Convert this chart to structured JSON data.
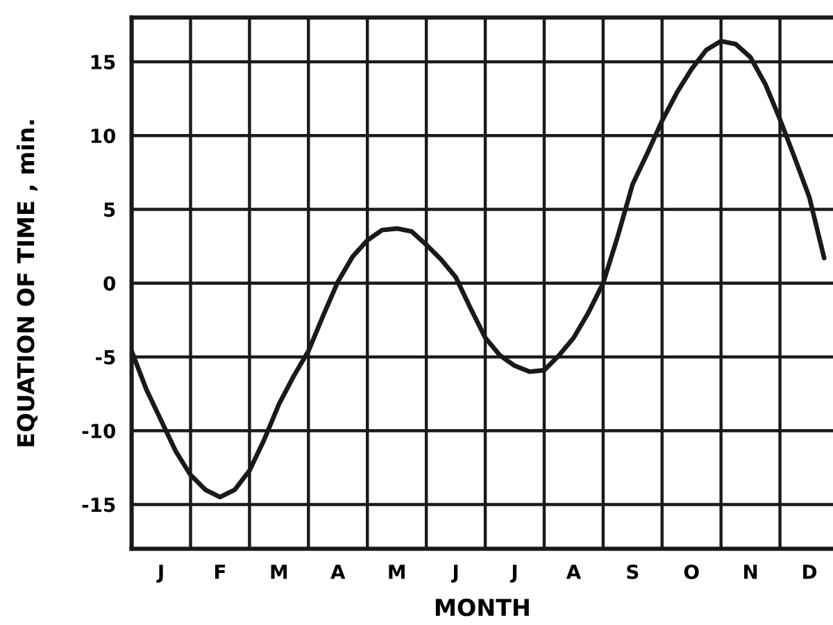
{
  "chart_data": {
    "type": "line",
    "xlabel": "MONTH",
    "ylabel": "EQUATION OF TIME , min.",
    "categories": [
      null,
      null,
      "J",
      null,
      null,
      null,
      "F",
      null,
      null,
      null,
      "M",
      null,
      null,
      null,
      "A",
      null,
      null,
      null,
      "M",
      null,
      null,
      null,
      "J",
      null,
      null,
      null,
      "J",
      null,
      null,
      null,
      "A",
      null,
      null,
      null,
      "S",
      null,
      null,
      null,
      "O",
      null,
      null,
      null,
      "N",
      null,
      null,
      null,
      "D",
      null
    ],
    "series": [
      {
        "color": "#1a1a1a",
        "values": [
          -4.6,
          -7.2,
          -9.3,
          -11.4,
          -13.0,
          -14.0,
          -14.5,
          -14.0,
          -12.7,
          -10.6,
          -8.2,
          -6.3,
          -4.6,
          -2.2,
          0.1,
          1.8,
          2.9,
          3.6,
          3.7,
          3.5,
          2.6,
          1.6,
          0.4,
          -1.7,
          -3.7,
          -4.9,
          -5.6,
          -6.0,
          -5.9,
          -4.9,
          -3.7,
          -2.0,
          0.0,
          3.2,
          6.7,
          8.8,
          11.0,
          12.9,
          14.5,
          15.8,
          16.4,
          16.2,
          15.3,
          13.5,
          11.1,
          8.5,
          5.8,
          1.7
        ]
      }
    ],
    "ylim": [
      -18,
      18
    ],
    "yticks": [
      -15,
      -10,
      -5,
      0,
      5,
      10,
      15
    ],
    "grid": true,
    "marker": "none",
    "line_style": "solid",
    "legend": false
  }
}
